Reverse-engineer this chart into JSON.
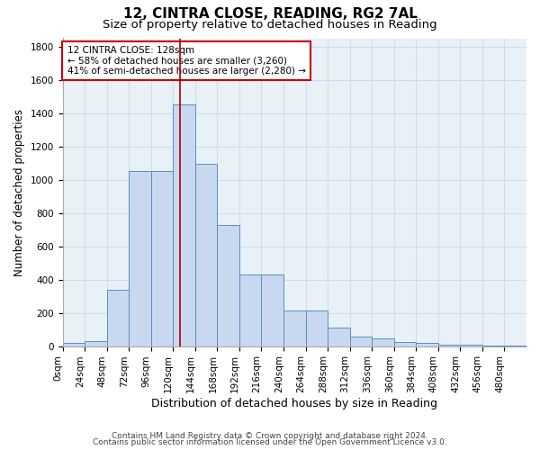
{
  "title1": "12, CINTRA CLOSE, READING, RG2 7AL",
  "title2": "Size of property relative to detached houses in Reading",
  "xlabel": "Distribution of detached houses by size in Reading",
  "ylabel": "Number of detached properties",
  "bin_edges": [
    0,
    24,
    48,
    72,
    96,
    120,
    144,
    168,
    192,
    216,
    240,
    264,
    288,
    312,
    336,
    360,
    384,
    408,
    432,
    456,
    480,
    504
  ],
  "bar_heights": [
    20,
    30,
    340,
    1050,
    1050,
    1450,
    1095,
    730,
    430,
    430,
    215,
    215,
    110,
    60,
    45,
    25,
    20,
    10,
    10,
    5,
    5
  ],
  "bar_color": "#c8d8ee",
  "bar_edge_color": "#5590c8",
  "grid_color": "#d0dce8",
  "bg_color": "#e8f0f8",
  "vline_x": 128,
  "vline_color": "#aa0000",
  "annotation_text": "12 CINTRA CLOSE: 128sqm\n← 58% of detached houses are smaller (3,260)\n41% of semi-detached houses are larger (2,280) →",
  "annotation_box_color": "#ffffff",
  "annotation_box_edge": "#cc0000",
  "ylim": [
    0,
    1850
  ],
  "yticks": [
    0,
    200,
    400,
    600,
    800,
    1000,
    1200,
    1400,
    1600,
    1800
  ],
  "tick_labels": [
    "0sqm",
    "24sqm",
    "48sqm",
    "72sqm",
    "96sqm",
    "120sqm",
    "144sqm",
    "168sqm",
    "192sqm",
    "216sqm",
    "240sqm",
    "264sqm",
    "288sqm",
    "312sqm",
    "336sqm",
    "360sqm",
    "384sqm",
    "408sqm",
    "432sqm",
    "456sqm",
    "480sqm"
  ],
  "footnote1": "Contains HM Land Registry data © Crown copyright and database right 2024.",
  "footnote2": "Contains public sector information licensed under the Open Government Licence v3.0.",
  "title1_fontsize": 11,
  "title2_fontsize": 9.5,
  "xlabel_fontsize": 9,
  "ylabel_fontsize": 8.5,
  "tick_fontsize": 7.5,
  "annot_fontsize": 7.5,
  "footnote_fontsize": 6.5
}
